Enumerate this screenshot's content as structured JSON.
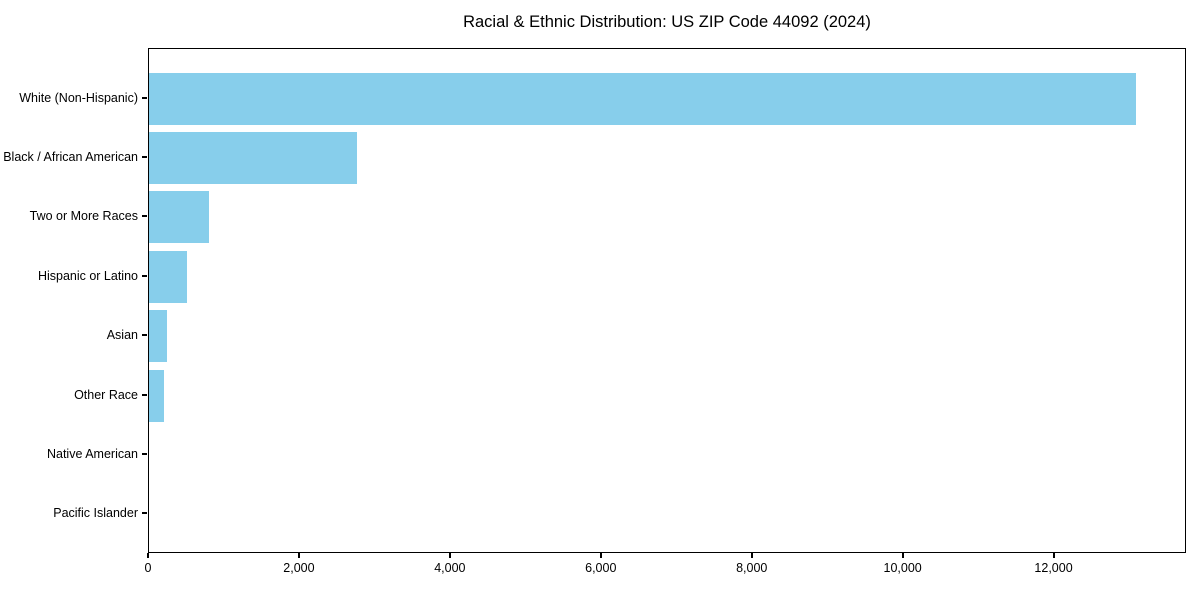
{
  "chart_data": {
    "type": "bar",
    "orientation": "horizontal",
    "title": "Racial & Ethnic Distribution: US ZIP Code 44092 (2024)",
    "categories": [
      "White (Non-Hispanic)",
      "Black / African American",
      "Two or More Races",
      "Hispanic or Latino",
      "Asian",
      "Other Race",
      "Native American",
      "Pacific Islander"
    ],
    "values": [
      13100,
      2760,
      790,
      500,
      235,
      195,
      0,
      0
    ],
    "xlabel": "",
    "ylabel": "",
    "xlim": [
      0,
      13755
    ],
    "x_tick_values": [
      0,
      2000,
      4000,
      6000,
      8000,
      10000,
      12000
    ],
    "x_tick_labels": [
      "0",
      "2,000",
      "4,000",
      "6,000",
      "8,000",
      "10,000",
      "12,000"
    ],
    "bar_color": "#87CEEB",
    "axis_color": "#000000",
    "text_color": "#000000",
    "background_color": "#FFFFFF",
    "grid": false,
    "legend": false
  }
}
